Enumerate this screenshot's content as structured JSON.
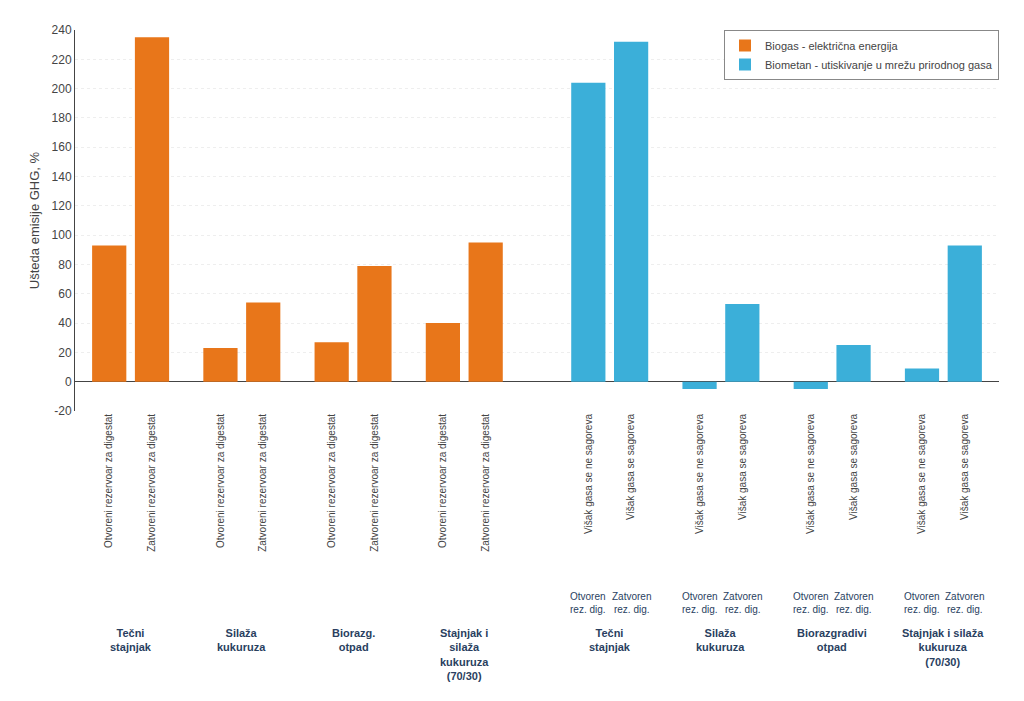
{
  "chart_data": {
    "type": "bar",
    "ylabel": "Ušteda emisije GHG, %",
    "categories": [
      "Otvoreni rezervoar za digestat",
      "Zatvoreni rezervoar za digestat",
      "Otvoreni rezervoar za digestat",
      "Zatvoreni rezervoar za digestat",
      "Otvoreni rezervoar za digestat",
      "Zatvoreni rezervoar za digestat",
      "Otvoreni rezervoar za digestat",
      "Zatvoreni rezervoar za digestat",
      "Višak gasa se ne sagoreva",
      "Višak gasa se sagoreva",
      "Višak gasa se ne sagoreva",
      "Višak gasa se sagoreva",
      "Višak gasa se ne sagoreva",
      "Višak gasa se sagoreva",
      "Višak gasa se ne sagoreva",
      "Višak gasa se sagoreva"
    ],
    "series": [
      {
        "name": "Biogas - električna energija",
        "color": "#E8761A",
        "values": [
          93,
          235,
          23,
          54,
          27,
          79,
          40,
          95,
          null,
          null,
          null,
          null,
          null,
          null,
          null,
          null
        ]
      },
      {
        "name": "Biometan - utiskivanje u mrežu prirodnog gasa",
        "color": "#3BAFD9",
        "values": [
          null,
          null,
          null,
          null,
          null,
          null,
          null,
          null,
          204,
          232,
          -5,
          53,
          -5,
          25,
          9,
          93
        ]
      }
    ],
    "annotations": [
      "Otvoren\nrez. dig.",
      "Zatvoren\nrez. dig.",
      "Otvoren\nrez. dig.",
      "Zatvoren\nrez. dig.",
      "Otvoren\nrez. dig.",
      "Zatvoren\nrez. dig.",
      "Otvoren\nrez. dig.",
      "Zatvoren\nrez. dig.",
      "Tečni\nstajnjak",
      "Silaža\nkukuruza",
      "Biorazg.\notpad",
      "Stajnjak i\nsilaža\nkukuruza\n(70/30)",
      "Tečni\nstajnjak",
      "Silaža\nkukuruza",
      "Biorazgradivi\notpad",
      "Stajnjak i silaža\nkukuruza\n(70/30)"
    ],
    "ylim": [
      -20,
      240
    ],
    "yticks": [
      -20,
      0,
      20,
      40,
      60,
      80,
      100,
      120,
      140,
      160,
      180,
      200,
      220,
      240
    ],
    "grid": true,
    "legend": "upper right"
  }
}
